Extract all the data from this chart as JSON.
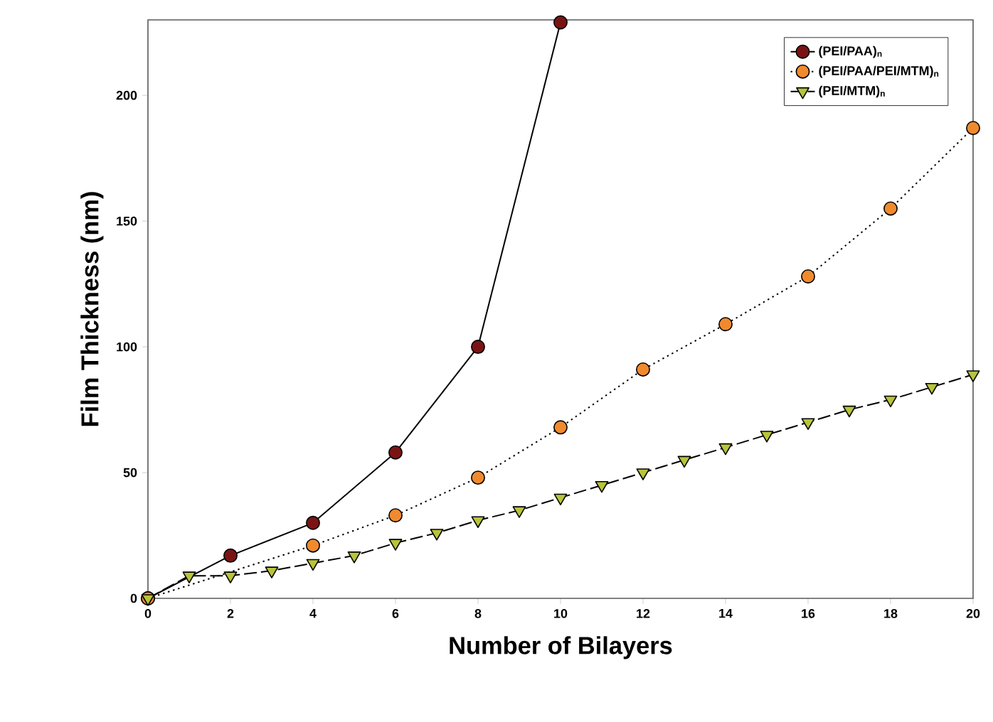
{
  "chart_data": {
    "type": "line",
    "xlabel": "Number of Bilayers",
    "ylabel": "Film Thickness (nm)",
    "xlim": [
      0,
      20
    ],
    "ylim": [
      0,
      230
    ],
    "xticks": [
      0,
      2,
      4,
      6,
      8,
      10,
      12,
      14,
      16,
      18,
      20
    ],
    "yticks": [
      0,
      50,
      100,
      150,
      200
    ],
    "legend": "top right",
    "grid": false,
    "series": [
      {
        "name": "(PEI/PAA)$_{n}$",
        "color": "#7a1414",
        "marker": "circle",
        "line_style": "solid",
        "x": [
          0,
          2,
          4,
          6,
          8,
          10
        ],
        "values": [
          0,
          17,
          30,
          58,
          100,
          229
        ]
      },
      {
        "name": "(PEI/PAA/PEI/MTM)$_{n}$",
        "color": "#f08a2e",
        "marker": "circle",
        "line_style": "dotted",
        "x": [
          0,
          4,
          6,
          8,
          10,
          12,
          14,
          16,
          18,
          20
        ],
        "values": [
          0,
          21,
          33,
          48,
          68,
          91,
          109,
          128,
          155,
          187
        ]
      },
      {
        "name": "(PEI/MTM)$_{n}$",
        "color": "#b8c43a",
        "marker": "triangle",
        "line_style": "dashed",
        "x": [
          0,
          1,
          2,
          3,
          4,
          5,
          6,
          7,
          8,
          9,
          10,
          11,
          12,
          13,
          14,
          15,
          16,
          17,
          18,
          19,
          20
        ],
        "values": [
          0,
          9,
          9,
          11,
          14,
          17,
          22,
          26,
          31,
          35,
          40,
          45,
          50,
          55,
          60,
          65,
          70,
          75,
          79,
          84,
          89
        ]
      }
    ]
  }
}
